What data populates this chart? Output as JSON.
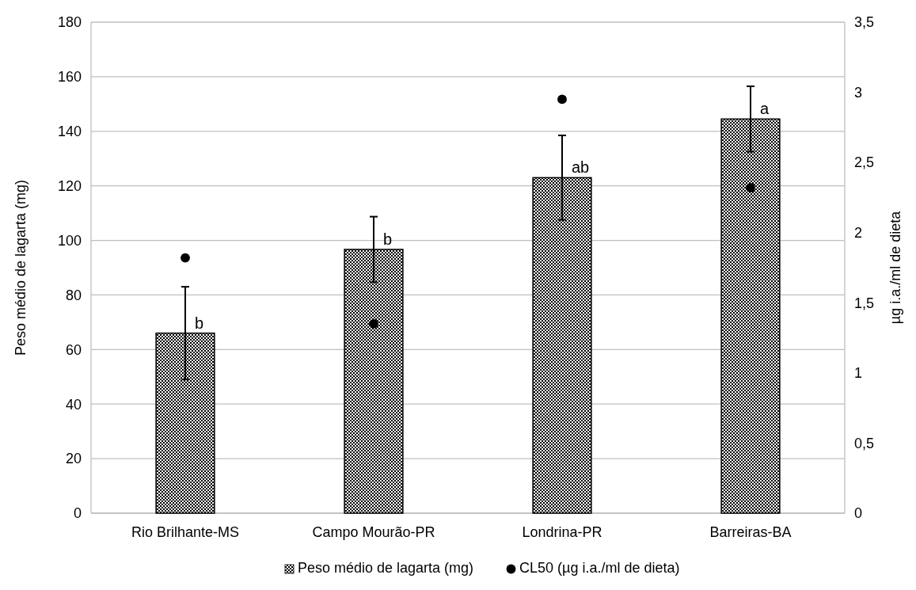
{
  "chart_data": {
    "type": "bar",
    "ylabel": "Peso médio de lagarta (mg)",
    "y2label": "µg i.a./ml de dieta",
    "categories": [
      "Rio Brilhante-MS",
      "Campo Mourão-PR",
      "Londrina-PR",
      "Barreiras-BA"
    ],
    "series": [
      {
        "name": "Peso médio de lagarta (mg)",
        "color": "#000000",
        "values": [
          66,
          96.7,
          123,
          144.5
        ],
        "errors": [
          17,
          12,
          15.5,
          12
        ]
      },
      {
        "name": "CL50 (µg i.a./ml de dieta)",
        "type": "scatter",
        "axis": "y2",
        "color": "#000000",
        "marker": "circle",
        "x": [
          "Rio Brilhante-MS",
          "Campo Mourão-PR",
          "Londrina-PR",
          "Barreiras-BA"
        ],
        "values": [
          1.82,
          1.35,
          2.95,
          2.32
        ]
      }
    ],
    "ylim": [
      0,
      180
    ],
    "yticks": [
      0,
      20,
      40,
      60,
      80,
      100,
      120,
      140,
      160,
      180
    ],
    "y2lim": [
      0,
      3.5
    ],
    "y2ticks": [
      0,
      {
        "value": 0.5,
        "label": "0,5"
      },
      1,
      {
        "value": 1.5,
        "label": "1,5"
      },
      2,
      {
        "value": 2.5,
        "label": "2,5"
      },
      3,
      {
        "value": 3.5,
        "label": "3,5"
      }
    ],
    "annotations": [
      {
        "text": "b",
        "x": "Rio Brilhante-MS",
        "y": 66
      },
      {
        "text": "b",
        "x": "Campo Mourão-PR",
        "y": 96.7
      },
      {
        "text": "ab",
        "x": "Londrina-PR",
        "y": 123
      },
      {
        "text": "a",
        "x": "Barreiras-BA",
        "y": 144.5
      }
    ],
    "grid": "y",
    "legend": "bottom"
  }
}
